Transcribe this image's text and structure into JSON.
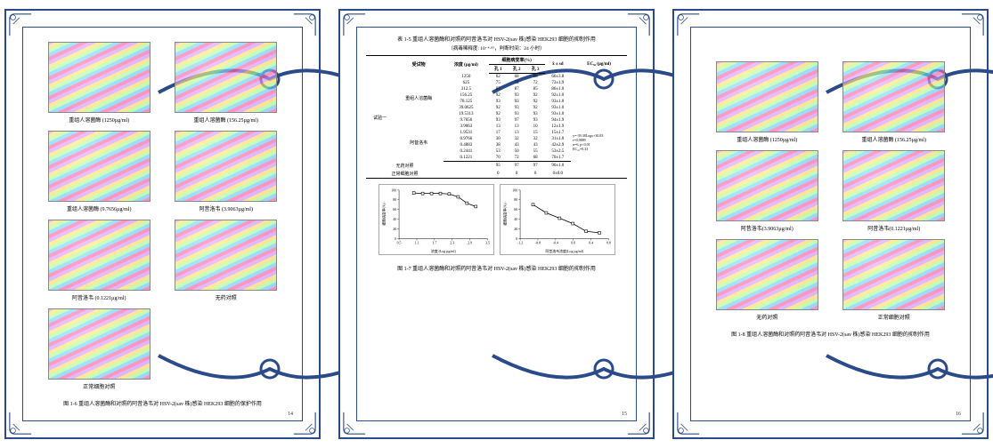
{
  "border_color": "#2a4a8a",
  "page1": {
    "images": [
      {
        "caption": "重组人溶菌酶 (1250µg/ml)"
      },
      {
        "caption": "重组人溶菌酶 (156.25µg/ml)"
      },
      {
        "caption": "重组人溶菌酶 (9.7656µg/ml)"
      },
      {
        "caption": "阿昔洛韦 (3.9063µg/ml)"
      },
      {
        "caption": "阿昔洛韦 (0.1221µg/ml)"
      },
      {
        "caption": "无药对照"
      },
      {
        "caption": "正常细胞对照"
      }
    ],
    "figure_title": "图 1-6 重组人溶菌酶和对照药阿昔洛韦对 HSV-2(sav 株)感染 HEK293 细胞的保护作用",
    "page_num": "14"
  },
  "page2": {
    "table_title": "表 1-5 重组人溶菌酶和对照药阿昔洛韦对 HSV-2(sav 株)感染 HEK293 细胞的抑制作用",
    "table_subtitle": "（病毒稀释度: 10⁻⁴·⁸⁵，判断时间：24 小时）",
    "headers": {
      "col0": "",
      "col1": "受试物",
      "col2": "浓度 (µg/ml)",
      "cpe_group": "细胞病变率(%)",
      "cpe1": "孔 1",
      "cpe2": "孔 2",
      "cpe3": "孔 3",
      "mean": "x̄ ± sd",
      "ec50": "EC₅₀ (µg/ml)"
    },
    "group_label": "试验一",
    "group_a": "重组人溶菌酶",
    "rows_a": [
      {
        "conc": "1250",
        "k1": "62",
        "k2": "68",
        "k3": "68",
        "mean": "66±3.8"
      },
      {
        "conc": "625",
        "k1": "75",
        "k2": "72",
        "k3": "72",
        "mean": "73±1.9"
      },
      {
        "conc": "312.5",
        "k1": "87",
        "k2": "87",
        "k3": "85",
        "mean": "86±1.0"
      },
      {
        "conc": "156.25",
        "k1": "92",
        "k2": "93",
        "k3": "92",
        "mean": "92±1.0"
      },
      {
        "conc": "78.125",
        "k1": "93",
        "k2": "93",
        "k3": "92",
        "mean": "93±1.0"
      },
      {
        "conc": "39.0625",
        "k1": "92",
        "k2": "93",
        "k3": "92",
        "mean": "93±1.0"
      },
      {
        "conc": "19.5313",
        "k1": "92",
        "k2": "93",
        "k3": "93",
        "mean": "93±1.0"
      },
      {
        "conc": "9.7656",
        "k1": "93",
        "k2": "97",
        "k3": "93",
        "mean": "94±1.9"
      }
    ],
    "group_b": "阿昔洛韦",
    "rows_b": [
      {
        "conc": "3.9063",
        "k1": "13",
        "k2": "13",
        "k3": "10",
        "mean": "12±1.9"
      },
      {
        "conc": "1.9531",
        "k1": "17",
        "k2": "13",
        "k3": "15",
        "mean": "15±1.7"
      },
      {
        "conc": "0.9766",
        "k1": "30",
        "k2": "32",
        "k3": "32",
        "mean": "31±1.0"
      },
      {
        "conc": "0.4883",
        "k1": "38",
        "k2": "43",
        "k3": "43",
        "mean": "42±2.9"
      },
      {
        "conc": "0.2441",
        "k1": "53",
        "k2": "50",
        "k3": "55",
        "mean": "53±2.5"
      },
      {
        "conc": "0.1221",
        "k1": "70",
        "k2": "72",
        "k3": "68",
        "mean": "70±1.7"
      }
    ],
    "ec50_note": "y=-39.38Logx+30.83\nr=0.9889\nn=6, p<0.01\nEC₅₀=0.33",
    "controls": [
      {
        "label": "无药对照",
        "k1": "95",
        "k2": "97",
        "k3": "97",
        "mean": "96±1.0"
      },
      {
        "label": "正常细胞对照",
        "k1": "0",
        "k2": "0",
        "k3": "0",
        "mean": "0±0.0"
      }
    ],
    "chart1": {
      "ylabel": "细胞病变率(%)",
      "xlabel": "浓度 (Log µg/ml)",
      "xlim": [
        0.5,
        3.5
      ],
      "ylim": [
        0,
        100
      ],
      "points": [
        [
          1.0,
          94
        ],
        [
          1.3,
          93
        ],
        [
          1.6,
          93
        ],
        [
          1.9,
          93
        ],
        [
          2.2,
          92
        ],
        [
          2.5,
          86
        ],
        [
          2.8,
          73
        ],
        [
          3.1,
          66
        ]
      ],
      "line_color": "#000000",
      "marker": "square"
    },
    "chart2": {
      "ylabel": "细胞病变率(%)",
      "xlabel": "阿昔洛韦浓度(Log µg/ml)",
      "xlim": [
        -1.2,
        0.8
      ],
      "ylim": [
        0,
        100
      ],
      "points": [
        [
          -0.91,
          70
        ],
        [
          -0.61,
          53
        ],
        [
          -0.31,
          42
        ],
        [
          -0.01,
          31
        ],
        [
          0.29,
          15
        ],
        [
          0.59,
          12
        ]
      ],
      "line_color": "#000000",
      "marker": "square"
    },
    "figure_title": "图 1-7 重组人溶菌酶和对照药阿昔洛韦对 HSV-2(sav 株)感染 HEK293 细胞的抑制作用",
    "page_num": "15"
  },
  "page3": {
    "images": [
      {
        "caption": "重组人溶菌酶 (1250µg/ml)"
      },
      {
        "caption": "重组人溶菌酶 (156.25µg/ml)"
      },
      {
        "caption": "阿昔洛韦(3.9063µg/ml)"
      },
      {
        "caption": "阿昔洛韦(0.1221µg/ml)"
      },
      {
        "caption": "无药对照"
      },
      {
        "caption": "正常细胞对照"
      }
    ],
    "figure_title": "图 1-8 重组人溶菌酶和对照药阿昔洛韦对 HSV-2(sav 株)感染 HEK293 细胞的抑制作用",
    "page_num": "16"
  }
}
